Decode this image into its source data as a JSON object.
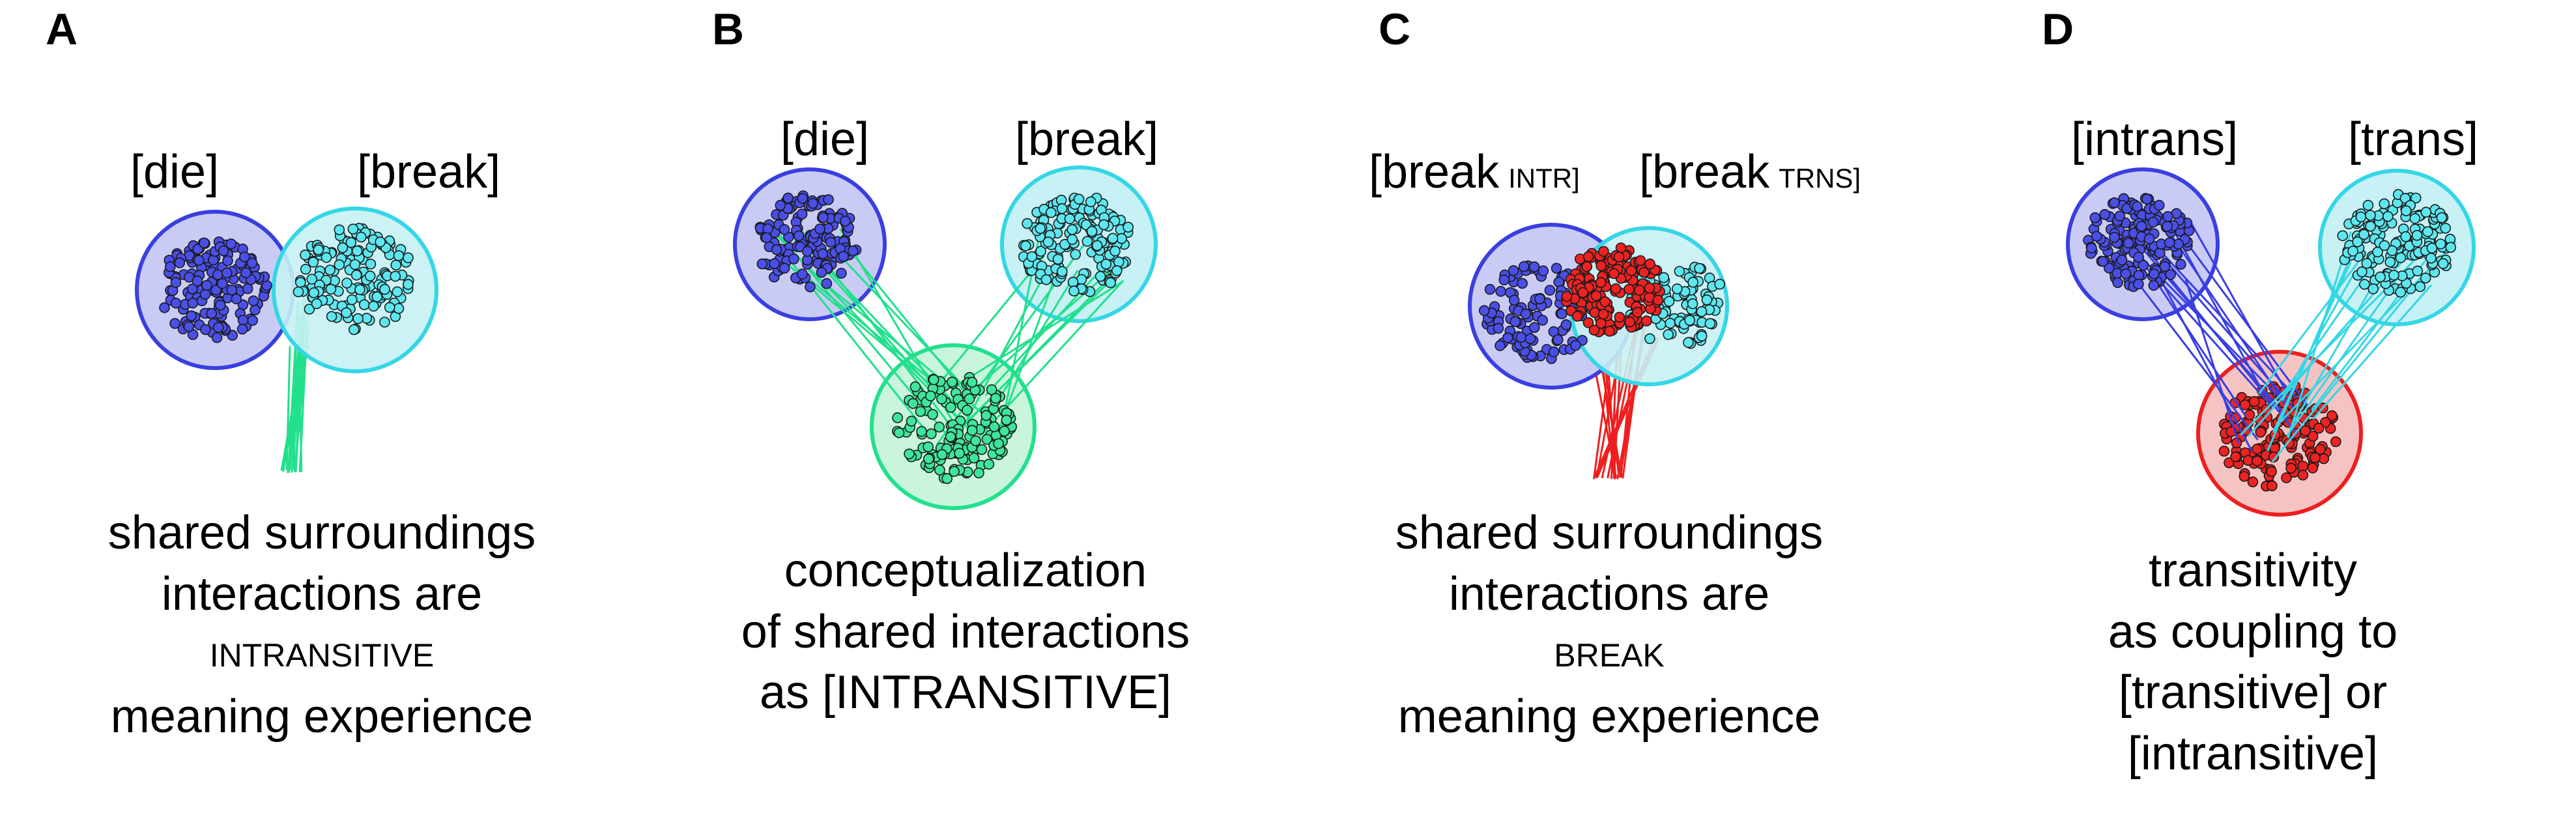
{
  "colors": {
    "blue": "#3a3fe0",
    "blue_fill": "#c9cbf4",
    "cyan": "#35d6e6",
    "cyan_fill": "#c7f1f4",
    "green": "#22e08c",
    "green_fill": "#c8f5dc",
    "red": "#ee1f1f",
    "red_fill": "#f6c3c3"
  },
  "panels": [
    {
      "letter": "A",
      "labels": [
        "[die]",
        "[break]"
      ],
      "caption": [
        "shared surroundings",
        "interactions are",
        "INTRANSITIVE",
        "meaning experience"
      ]
    },
    {
      "letter": "B",
      "labels": [
        "[die]",
        "[break]"
      ],
      "caption": [
        "conceptualization",
        "of shared interactions",
        "as [INTRANSITIVE]"
      ]
    },
    {
      "letter": "C",
      "labels": [
        "[break",
        "INTR]",
        "[break",
        "TRNS]"
      ],
      "caption": [
        "shared surroundings",
        "interactions are",
        "BREAK",
        "meaning experience"
      ]
    },
    {
      "letter": "D",
      "labels": [
        "[intrans]",
        "[trans]"
      ],
      "caption": [
        "transitivity",
        "as coupling to",
        "[transitive] or",
        "[intransitive]"
      ]
    }
  ]
}
